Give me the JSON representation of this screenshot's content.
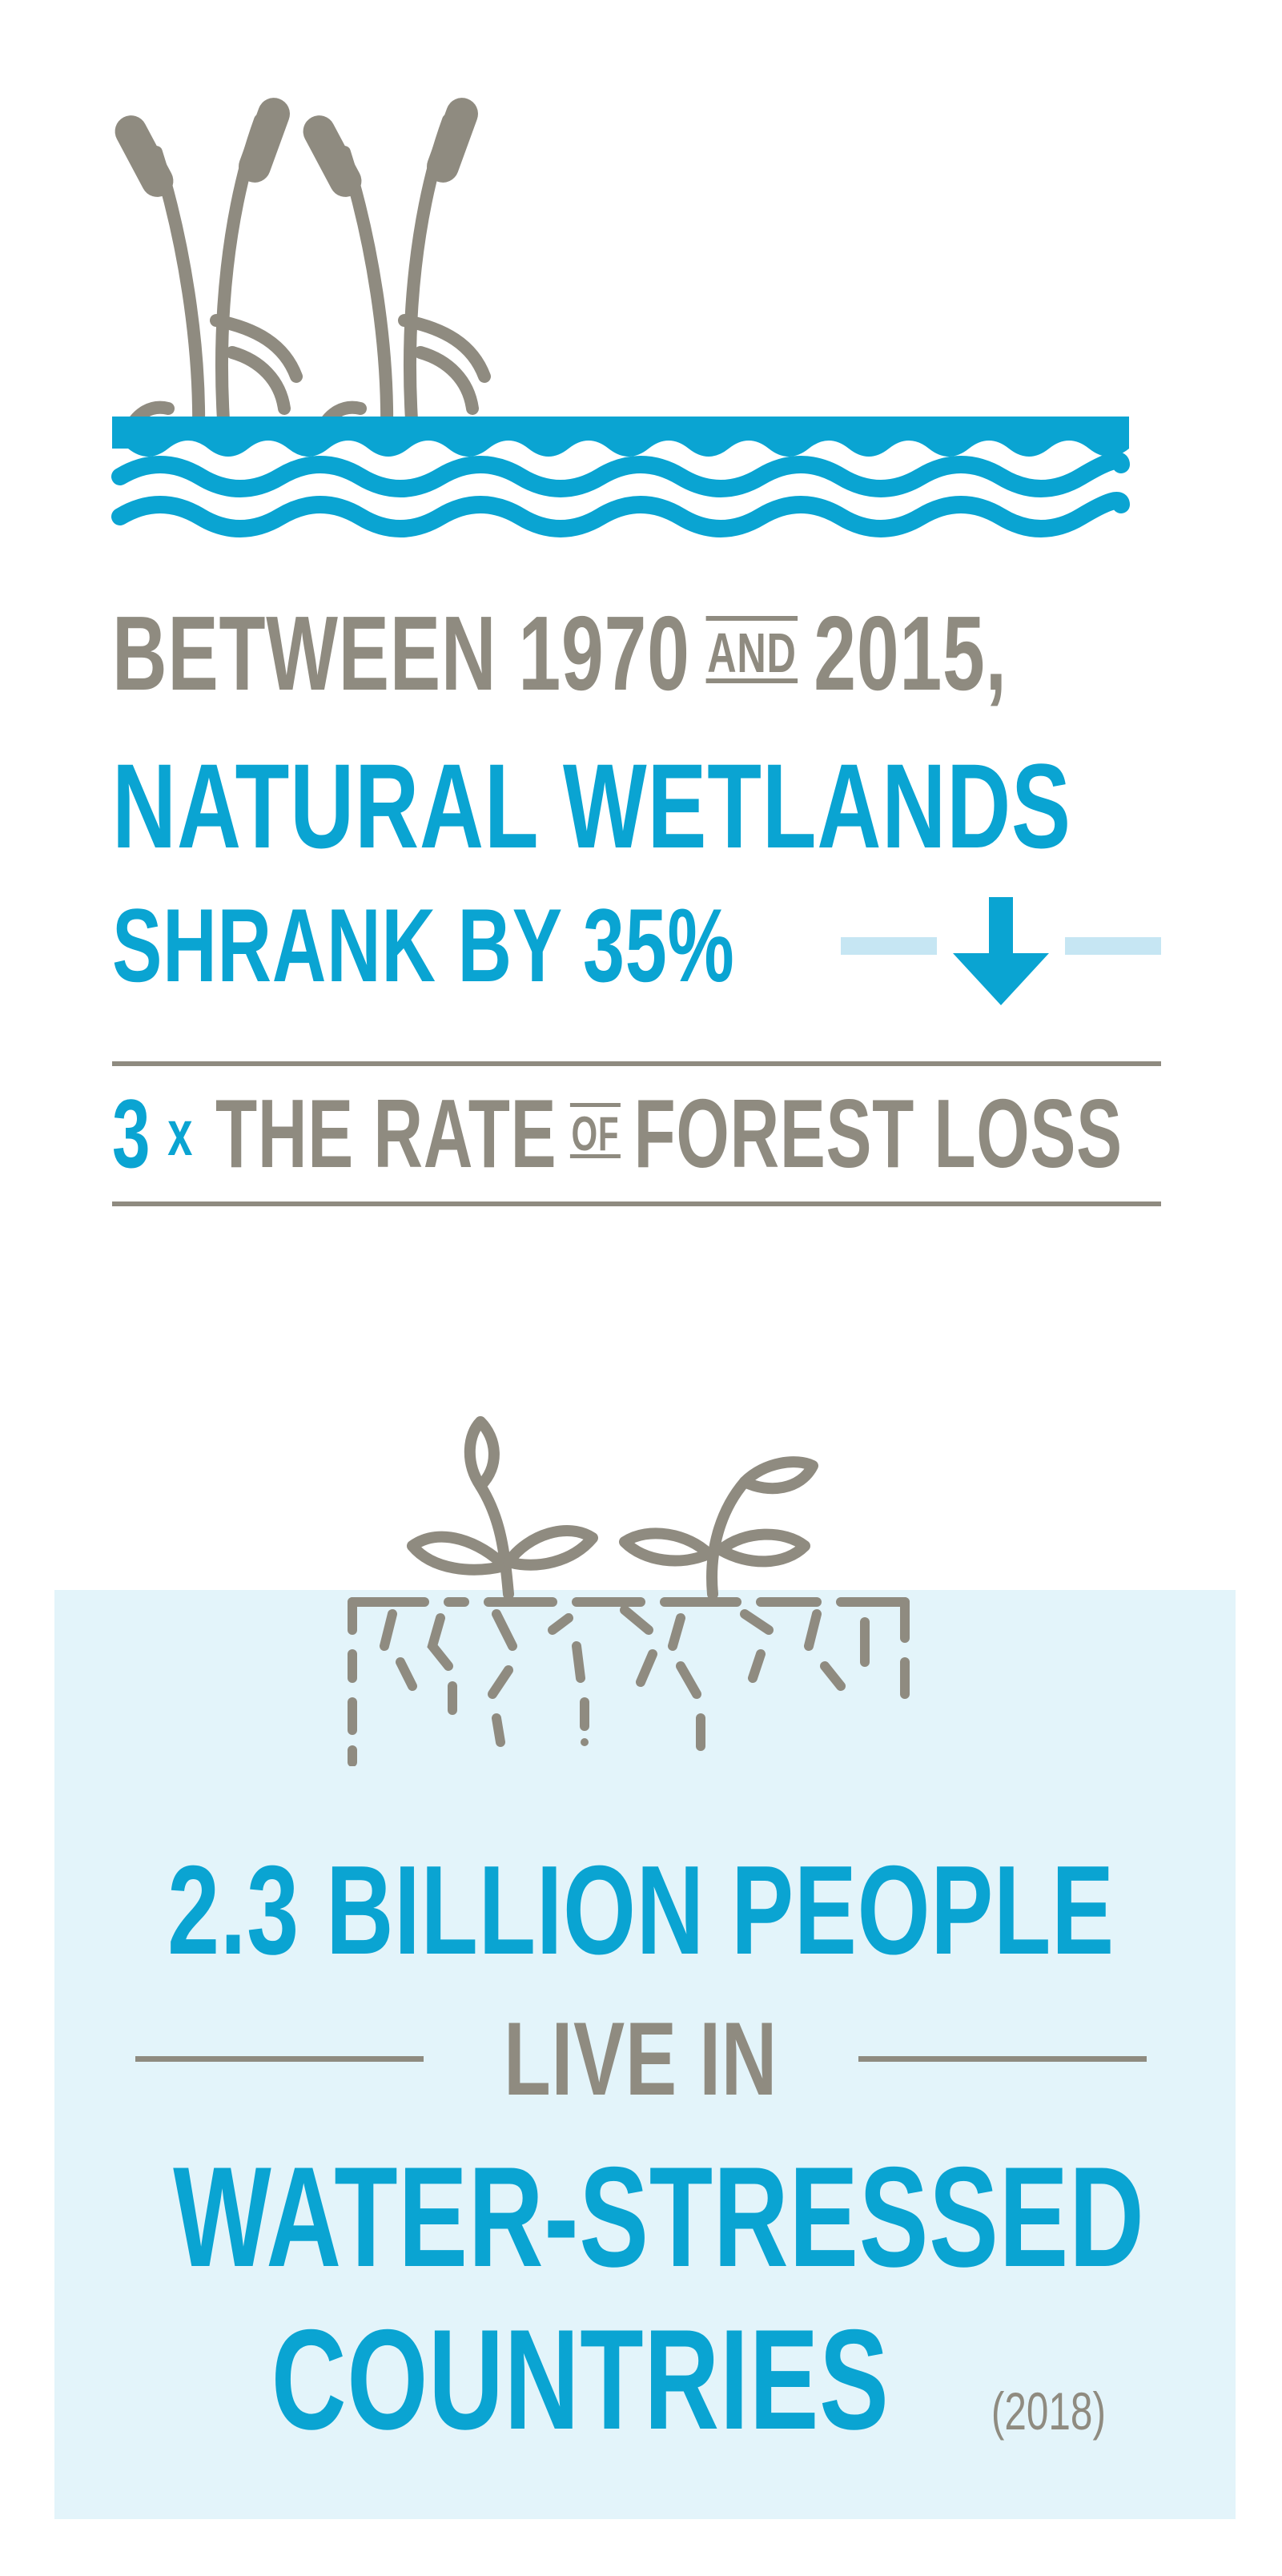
{
  "wetlands": {
    "line_between": "BETWEEN 1970",
    "and_word": "AND",
    "line_year_end": "2015,",
    "headline": "NATURAL WETLANDS",
    "shrank": "SHRANK BY 35%",
    "rate_multiplier": "3",
    "rate_x": "x",
    "rate_text_1": "THE RATE",
    "of_word": "OF",
    "rate_text_2": "FOREST LOSS",
    "icons": [
      "cattail-icon",
      "water-waves-icon",
      "down-arrow-icon"
    ]
  },
  "water": {
    "people": "2.3 BILLION PEOPLE",
    "live_in": "LIVE IN",
    "stressed": "WATER-STRESSED",
    "countries": "COUNTRIES",
    "year": "(2018)",
    "icons": [
      "sprout-icon",
      "cracked-soil-icon"
    ]
  },
  "colors": {
    "blue": "#0aa4d2",
    "gray": "#8f8b80",
    "panel_bg": "#e3f4fa",
    "light_blue": "#c6e6f3"
  }
}
